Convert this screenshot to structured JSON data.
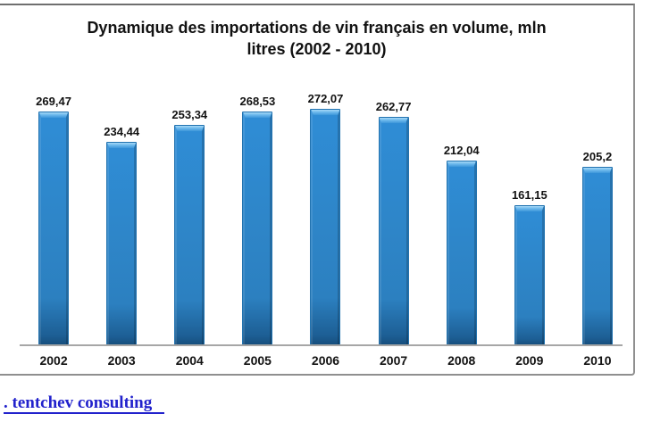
{
  "chart_data": {
    "type": "bar",
    "title": "Dynamique des importations de vin français en volume, mln litres (2002 - 2010)",
    "title_line1": "Dynamique des importations de vin français en volume, mln",
    "title_line2": "litres (2002 - 2010)",
    "categories": [
      "2002",
      "2003",
      "2004",
      "2005",
      "2006",
      "2007",
      "2008",
      "2009",
      "2010"
    ],
    "values": [
      269.47,
      234.44,
      253.34,
      268.53,
      272.07,
      262.77,
      212.04,
      161.15,
      205.2
    ],
    "value_labels": [
      "269,47",
      "234,44",
      "253,34",
      "268,53",
      "272,07",
      "262,77",
      "212,04",
      "161,15",
      "205,2"
    ],
    "xlabel": "",
    "ylabel": "",
    "ylim": [
      0,
      300
    ],
    "grid": false,
    "legend": "none",
    "bar_color": "#2E86C9",
    "bar_highlight": "#A8D9F7",
    "bar_shadow": "#1D5F95",
    "bar_edge": "#2273B0",
    "axis_color": "#A6A6A6",
    "frame_color": "#8F8F8F",
    "label_color": "#121212"
  },
  "footer": {
    "link_label": ". tentchev consulting",
    "link_color": "#2222CC"
  }
}
